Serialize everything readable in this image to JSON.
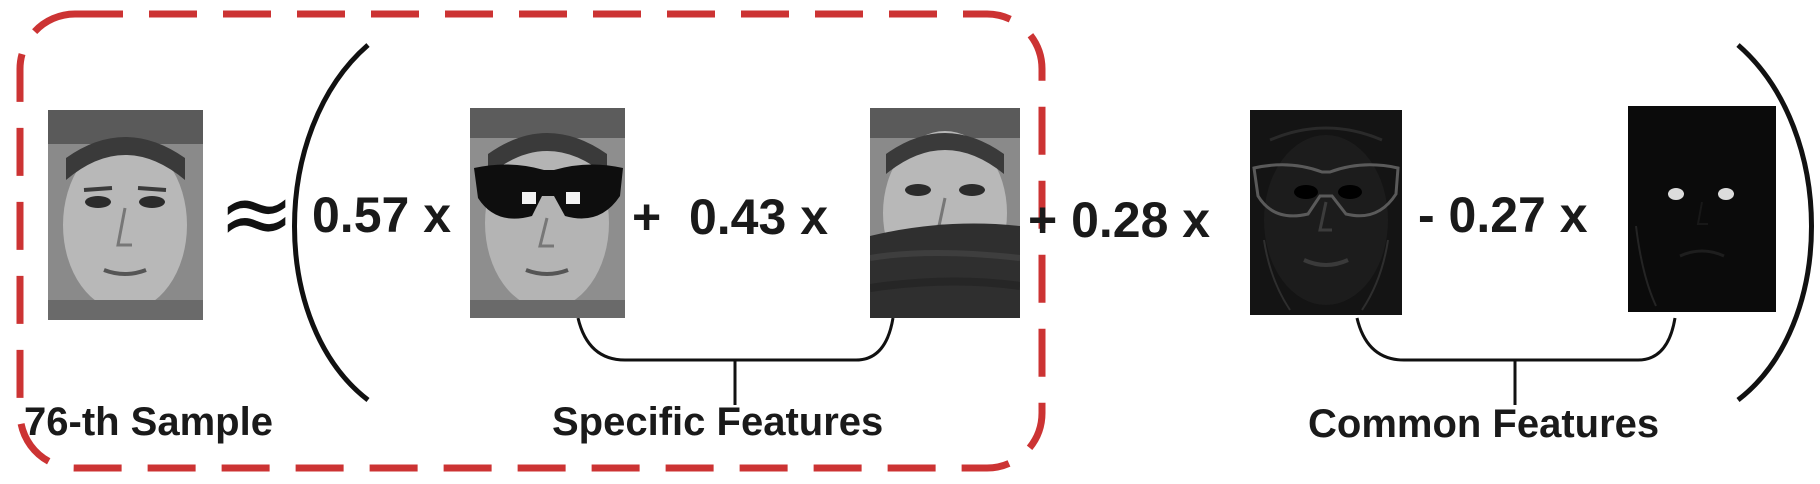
{
  "equation": {
    "approx_symbol": "≈",
    "term1": "0.57 x",
    "term2": "+  0.43 x",
    "term3": "+ 0.28 x",
    "term4": "- 0.27 x"
  },
  "labels": {
    "sample": "76-th Sample",
    "specific": "Specific Features",
    "common": "Common Features"
  },
  "images": [
    {
      "name": "sample-face",
      "kind": "face"
    },
    {
      "name": "sunglasses-face",
      "kind": "face-with-sunglasses"
    },
    {
      "name": "scarf-face",
      "kind": "face-with-scarf"
    },
    {
      "name": "common-feature-1",
      "kind": "dark-feature-map"
    },
    {
      "name": "common-feature-2",
      "kind": "dark-feature-map"
    }
  ],
  "colors": {
    "dashed_box": "#cc3333",
    "text": "#1a1a1a",
    "lines": "#111111"
  }
}
